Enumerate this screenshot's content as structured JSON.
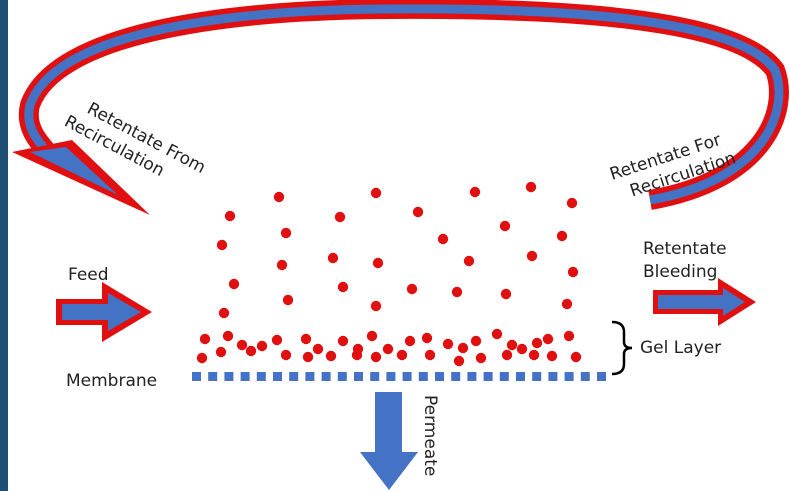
{
  "labels": {
    "retentate_from_1": "Retentate From",
    "retentate_from_2": "Recirculation",
    "retentate_for_1": "Retentate For",
    "retentate_for_2": "Recirculation",
    "feed": "Feed",
    "retentate_bleeding_1": "Retentate",
    "retentate_bleeding_2": "Bleeding",
    "gel_layer": "Gel Layer",
    "membrane": "Membrane",
    "permeate": "Permeate"
  },
  "colors": {
    "frame_bar": "#1d4e73",
    "arrow_fill": "#4472c4",
    "arrow_border": "#e01010",
    "particle": "#e01010",
    "membrane": "#4472c4"
  },
  "icons": {
    "recirculation": "curved-arrow",
    "feed": "right-arrow",
    "bleeding": "right-arrow",
    "permeate": "down-arrow",
    "gel_layer": "right-brace"
  }
}
